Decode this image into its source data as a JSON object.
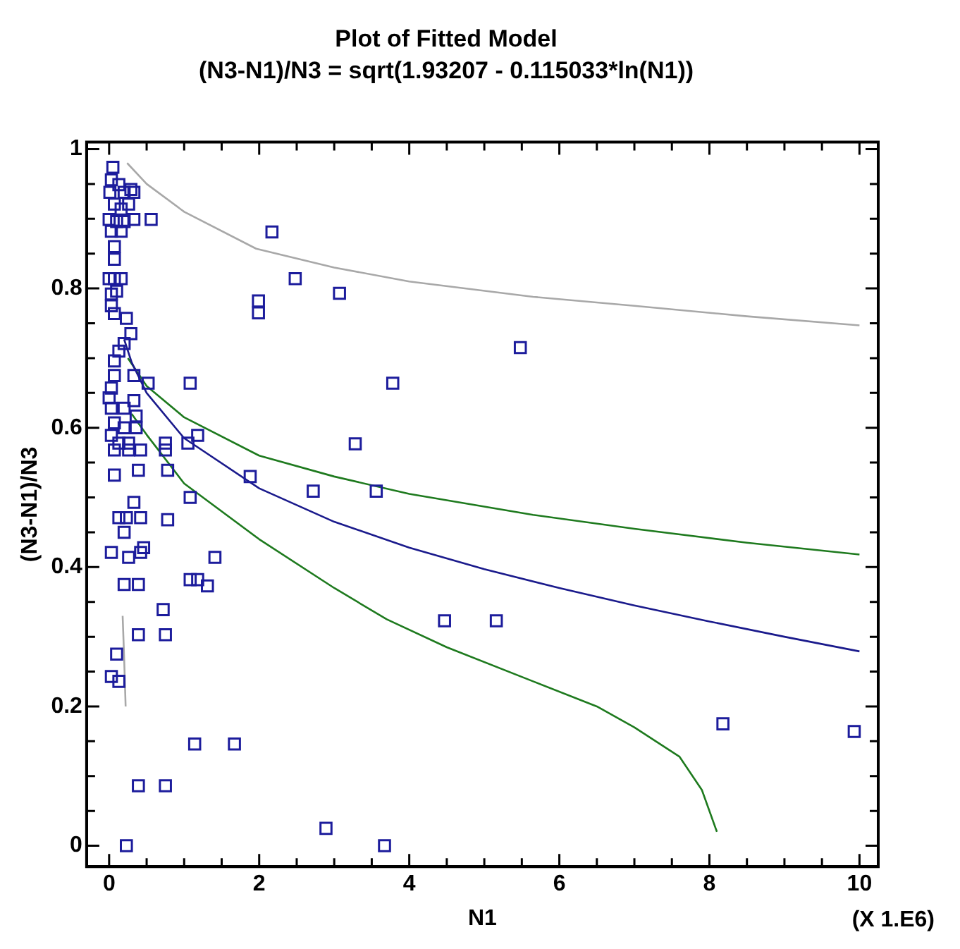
{
  "chart_data": {
    "type": "scatter",
    "title": "Plot of Fitted Model",
    "subtitle": "(N3-N1)/N3 = sqrt(1.93207 - 0.115033*ln(N1))",
    "xlabel": "N1",
    "ylabel": "(N3-N1)/N3",
    "annotations": [
      "(X 1.E6)"
    ],
    "xlim": [
      -0.3,
      10.25
    ],
    "ylim": [
      -0.03,
      1.01
    ],
    "xticks": [
      0,
      {
        "value": 0.5,
        "label": null
      },
      {
        "value": 1,
        "label": null
      },
      {
        "value": 1.5,
        "label": null
      },
      2,
      {
        "value": 2.5,
        "label": null
      },
      {
        "value": 3,
        "label": null
      },
      {
        "value": 3.5,
        "label": null
      },
      4,
      {
        "value": 4.5,
        "label": null
      },
      {
        "value": 5,
        "label": null
      },
      {
        "value": 5.5,
        "label": null
      },
      6,
      {
        "value": 6.5,
        "label": null
      },
      {
        "value": 7,
        "label": null
      },
      {
        "value": 7.5,
        "label": null
      },
      8,
      {
        "value": 8.5,
        "label": null
      },
      {
        "value": 9,
        "label": null
      },
      {
        "value": 9.5,
        "label": null
      },
      10
    ],
    "yticks": [
      0,
      {
        "value": 0.05,
        "label": null
      },
      {
        "value": 0.1,
        "label": null
      },
      {
        "value": 0.15,
        "label": null
      },
      0.2,
      {
        "value": 0.25,
        "label": null
      },
      {
        "value": 0.3,
        "label": null
      },
      {
        "value": 0.35,
        "label": null
      },
      0.4,
      {
        "value": 0.45,
        "label": null
      },
      {
        "value": 0.5,
        "label": null
      },
      {
        "value": 0.55,
        "label": null
      },
      0.6,
      {
        "value": 0.65,
        "label": null
      },
      {
        "value": 0.7,
        "label": null
      },
      {
        "value": 0.75,
        "label": null
      },
      0.8,
      {
        "value": 0.85,
        "label": null
      },
      {
        "value": 0.9,
        "label": null
      },
      {
        "value": 0.95,
        "label": null
      },
      1
    ],
    "series": [
      {
        "type": "scatter",
        "marker": "square",
        "color": "#1c1c9c",
        "x": [
          0.05,
          0.03,
          0.01,
          0.13,
          0.2,
          0.29,
          0.07,
          0.16,
          0.26,
          0.0,
          0.1,
          0.2,
          0.33,
          0.03,
          0.16,
          0.33,
          0.56,
          0.07,
          0.07,
          0.0,
          0.07,
          0.16,
          0.03,
          0.1,
          0.03,
          0.07,
          0.23,
          0.29,
          0.2,
          0.13,
          0.07,
          0.52,
          1.08,
          0.33,
          0.07,
          0.03,
          0.0,
          0.03,
          0.2,
          0.33,
          0.36,
          0.07,
          0.2,
          0.36,
          0.03,
          0.13,
          0.26,
          0.42,
          0.07,
          0.26,
          0.75,
          0.75,
          1.05,
          1.18,
          0.78,
          0.39,
          0.07,
          1.08,
          0.33,
          0.13,
          0.23,
          0.42,
          0.78,
          0.2,
          0.46,
          0.42,
          0.03,
          0.26,
          1.41,
          0.2,
          0.39,
          1.08,
          1.18,
          1.31,
          0.72,
          0.39,
          0.75,
          0.1,
          0.03,
          0.13,
          1.14,
          1.67,
          0.39,
          0.75,
          0.23,
          2.17,
          2.48,
          3.07,
          1.99,
          1.99,
          5.48,
          3.78,
          3.28,
          1.88,
          2.72,
          3.56,
          4.47,
          5.16,
          8.18,
          9.93,
          2.89,
          3.67
        ],
        "values": [
          0.974,
          0.956,
          0.938,
          0.949,
          0.938,
          0.942,
          0.921,
          0.914,
          0.921,
          0.899,
          0.896,
          0.896,
          0.899,
          0.882,
          0.882,
          0.938,
          0.899,
          0.86,
          0.842,
          0.814,
          0.814,
          0.814,
          0.792,
          0.796,
          0.775,
          0.764,
          0.757,
          0.735,
          0.721,
          0.71,
          0.696,
          0.664,
          0.664,
          0.675,
          0.675,
          0.657,
          0.643,
          0.628,
          0.628,
          0.639,
          0.617,
          0.607,
          0.6,
          0.6,
          0.589,
          0.578,
          0.578,
          0.568,
          0.568,
          0.568,
          0.578,
          0.568,
          0.578,
          0.589,
          0.539,
          0.539,
          0.532,
          0.5,
          0.493,
          0.471,
          0.471,
          0.471,
          0.468,
          0.45,
          0.428,
          0.421,
          0.421,
          0.414,
          0.414,
          0.375,
          0.375,
          0.382,
          0.382,
          0.373,
          0.339,
          0.303,
          0.303,
          0.275,
          0.243,
          0.236,
          0.146,
          0.146,
          0.086,
          0.086,
          0.0,
          0.881,
          0.814,
          0.793,
          0.782,
          0.765,
          0.715,
          0.664,
          0.577,
          0.53,
          0.509,
          0.509,
          0.323,
          0.323,
          0.175,
          0.164,
          0.025,
          0.0
        ]
      },
      {
        "type": "line",
        "color": "#1a1a8c",
        "x": [
          0.2,
          0.3,
          0.5,
          1,
          2,
          3,
          4,
          5,
          6,
          7,
          8,
          9,
          10
        ],
        "values": [
          0.727,
          0.694,
          0.65,
          0.585,
          0.513,
          0.465,
          0.428,
          0.397,
          0.37,
          0.345,
          0.322,
          0.3,
          0.279
        ]
      },
      {
        "type": "line",
        "color": "#1e7a1e",
        "x": [
          0.25,
          0.5,
          1,
          2,
          3,
          4,
          5.65,
          7,
          8.5,
          10
        ],
        "values": [
          0.7,
          0.66,
          0.615,
          0.56,
          0.53,
          0.505,
          0.475,
          0.455,
          0.435,
          0.418
        ]
      },
      {
        "type": "line",
        "color": "#1e7a1e",
        "x": [
          0.3,
          0.5,
          1,
          2,
          3,
          3.7,
          4.5,
          5.65,
          6.5,
          7,
          7.6,
          7.9,
          8.1
        ],
        "values": [
          0.62,
          0.59,
          0.52,
          0.44,
          0.37,
          0.325,
          0.285,
          0.236,
          0.2,
          0.17,
          0.128,
          0.08,
          0.02
        ]
      },
      {
        "type": "line",
        "color": "#a8a8a8",
        "x": [
          0.24,
          0.5,
          1,
          1.96,
          3,
          4,
          5.65,
          7,
          8.5,
          10
        ],
        "values": [
          0.98,
          0.95,
          0.91,
          0.857,
          0.83,
          0.81,
          0.788,
          0.775,
          0.76,
          0.747
        ]
      },
      {
        "type": "line",
        "color": "#a8a8a8",
        "x": [
          0.18,
          0.2,
          0.22
        ],
        "values": [
          0.33,
          0.27,
          0.2
        ]
      }
    ]
  }
}
